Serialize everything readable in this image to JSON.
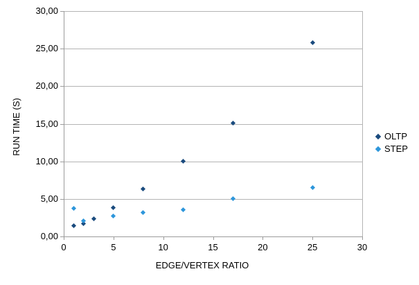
{
  "chart_data": {
    "type": "scatter",
    "title": "",
    "xlabel": "EDGE/VERTEX RATIO",
    "ylabel": "RUN TIME (S)",
    "xlim": [
      0,
      30
    ],
    "ylim": [
      0,
      30
    ],
    "grid": "horizontal",
    "legend_position": "right",
    "x_ticks": [
      {
        "value": 0,
        "label": "0"
      },
      {
        "value": 5,
        "label": "5"
      },
      {
        "value": 10,
        "label": "10"
      },
      {
        "value": 15,
        "label": "15"
      },
      {
        "value": 20,
        "label": "20"
      },
      {
        "value": 25,
        "label": "25"
      },
      {
        "value": 30,
        "label": "30"
      }
    ],
    "y_ticks": [
      {
        "value": 0,
        "label": "0,00"
      },
      {
        "value": 5,
        "label": "5,00"
      },
      {
        "value": 10,
        "label": "10,00"
      },
      {
        "value": 15,
        "label": "15,00"
      },
      {
        "value": 20,
        "label": "20,00"
      },
      {
        "value": 25,
        "label": "25,00"
      },
      {
        "value": 30,
        "label": "30,00"
      }
    ],
    "series": [
      {
        "name": "OLTP",
        "color": "#1A4B7E",
        "marker": "diamond",
        "points": [
          [
            1,
            1.4
          ],
          [
            2,
            1.7
          ],
          [
            3,
            2.4
          ],
          [
            5,
            3.8
          ],
          [
            8,
            6.3
          ],
          [
            12,
            10.0
          ],
          [
            17,
            15.1
          ],
          [
            25,
            25.8
          ]
        ]
      },
      {
        "name": "STEP",
        "color": "#2D96DB",
        "marker": "diamond",
        "points": [
          [
            1,
            3.7
          ],
          [
            2,
            2.1
          ],
          [
            5,
            2.7
          ],
          [
            8,
            3.2
          ],
          [
            12,
            3.6
          ],
          [
            17,
            5.0
          ],
          [
            25,
            6.5
          ]
        ]
      }
    ]
  },
  "styles": {
    "background": "#ffffff",
    "grid_color": "#b4b4b4",
    "axis_color": "#9b9b9b",
    "text_color": "#000000"
  }
}
